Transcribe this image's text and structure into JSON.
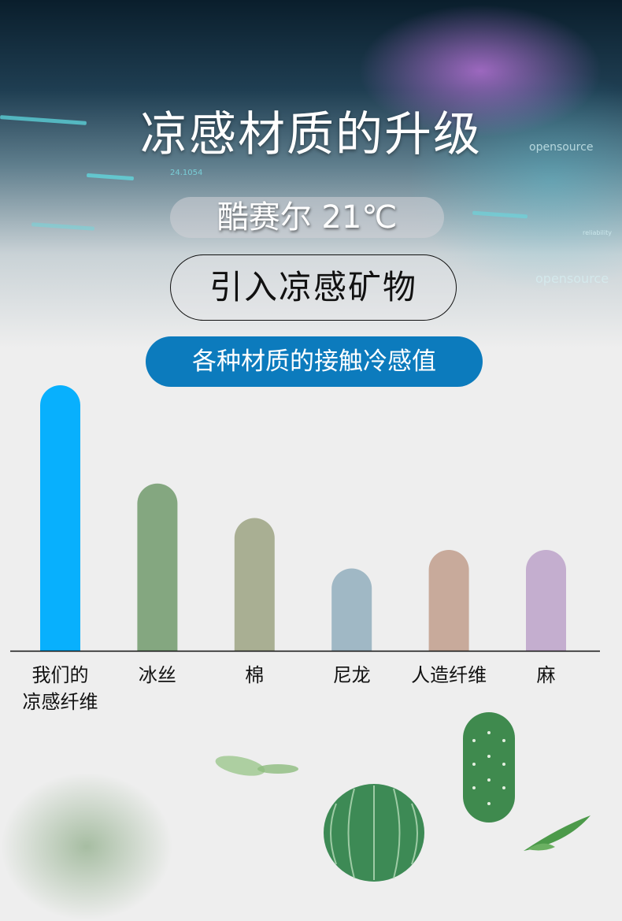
{
  "header": {
    "title": "凉感材质的升级",
    "badge_temp": "酷赛尔 21℃",
    "badge_mineral": "引入凉感矿物",
    "badge_chart_title": "各种材质的接触冷感值"
  },
  "background_text": [
    "opensource",
    "opensource",
    "24.1054",
    "reliability"
  ],
  "chart_data": {
    "type": "bar",
    "title": "各种材质的接触冷感值",
    "categories": [
      "我们的凉感纤维",
      "冰丝",
      "棉",
      "尼龙",
      "人造纤维",
      "麻"
    ],
    "category_lines": [
      [
        "我们的",
        "凉感纤维"
      ],
      [
        "冰丝"
      ],
      [
        "棉"
      ],
      [
        "尼龙"
      ],
      [
        "人造纤维"
      ],
      [
        "麻"
      ]
    ],
    "values": [
      100,
      63,
      50,
      31,
      38,
      38
    ],
    "colors": [
      "#08b0fd",
      "#84a780",
      "#a9af93",
      "#a0b8c5",
      "#c8aa9b",
      "#c4aecf"
    ],
    "ylim": [
      0,
      100
    ],
    "grid": false,
    "xlabel": "",
    "ylabel": ""
  }
}
